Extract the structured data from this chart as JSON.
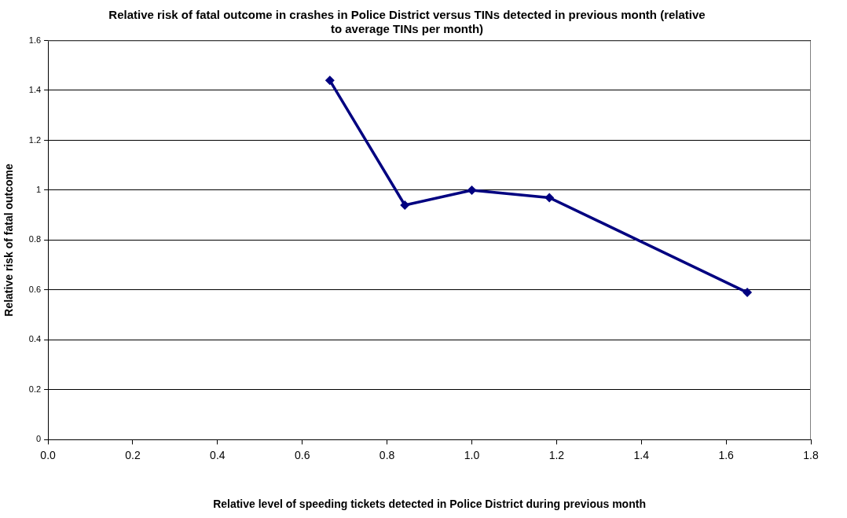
{
  "chart_data": {
    "type": "line",
    "title": "Relative risk of fatal outcome in crashes in Police District versus TINs detected in previous month (relative to average TINs per month)",
    "xlabel": "Relative level of speeding tickets detected in Police District during previous month",
    "ylabel": "Relative risk of fatal outcome",
    "x": [
      0.665,
      0.842,
      1.0,
      1.183,
      1.65
    ],
    "series": [
      {
        "color": "#000080",
        "values": [
          1.44,
          0.94,
          1.0,
          0.97,
          0.59
        ]
      }
    ],
    "xlim": [
      0,
      1.8
    ],
    "xticks": [
      {
        "value": 0,
        "label": "0.0"
      },
      {
        "value": 0.2,
        "label": "0.2"
      },
      {
        "value": 0.4,
        "label": "0.4"
      },
      {
        "value": 0.6,
        "label": "0.6"
      },
      {
        "value": 0.8,
        "label": "0.8"
      },
      {
        "value": 1,
        "label": "1.0"
      },
      {
        "value": 1.2,
        "label": "1.2"
      },
      {
        "value": 1.4,
        "label": "1.4"
      },
      {
        "value": 1.6,
        "label": "1.6"
      },
      {
        "value": 1.8,
        "label": "1.8"
      }
    ],
    "ylim": [
      0,
      1.6
    ],
    "yticks": [
      0,
      0.2,
      0.4,
      0.6,
      0.8,
      1,
      1.2,
      1.4,
      1.6
    ],
    "grid": "y",
    "marker": "diamond",
    "line_style": "solid",
    "legend": false
  }
}
